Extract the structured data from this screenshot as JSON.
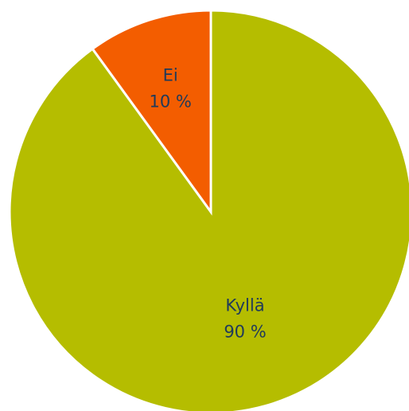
{
  "chart_data": {
    "type": "pie",
    "title": "",
    "start_angle_deg": 0,
    "direction": "clockwise",
    "slices": [
      {
        "label": "Kyllä",
        "value": 90,
        "value_text": "90 %",
        "color": "#b5bd00"
      },
      {
        "label": "Ei",
        "value": 10,
        "value_text": "10 %",
        "color": "#f35d00"
      }
    ]
  }
}
